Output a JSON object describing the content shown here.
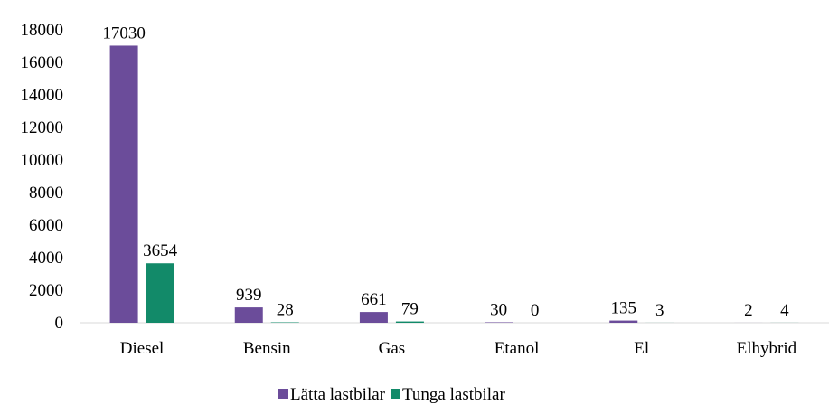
{
  "chart_data": {
    "type": "bar",
    "categories": [
      "Diesel",
      "Bensin",
      "Gas",
      "Etanol",
      "El",
      "Elhybrid"
    ],
    "series": [
      {
        "name": "Lätta lastbilar",
        "color": "#6b4c9a",
        "values": [
          17030,
          939,
          661,
          30,
          135,
          2
        ]
      },
      {
        "name": "Tunga lastbilar",
        "color": "#128a69",
        "values": [
          3654,
          28,
          79,
          0,
          3,
          4
        ]
      }
    ],
    "ylim": [
      0,
      18000
    ],
    "yticks": [
      0,
      2000,
      4000,
      6000,
      8000,
      10000,
      12000,
      14000,
      16000,
      18000
    ],
    "grid": false,
    "legend": "bottom"
  }
}
